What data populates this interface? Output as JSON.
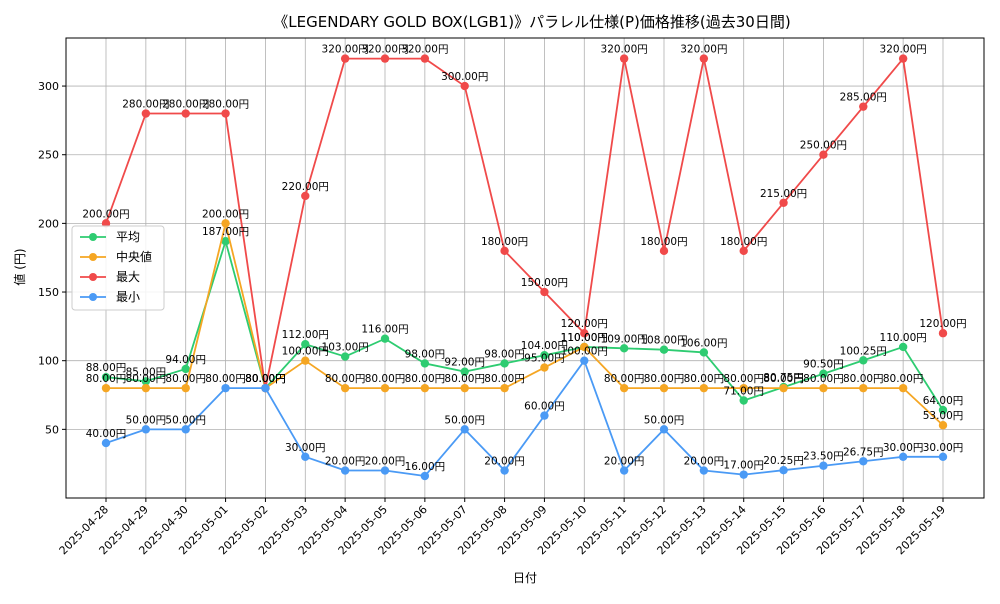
{
  "chart_data": {
    "type": "line",
    "title": "《LEGENDARY GOLD BOX(LGB1)》パラレル仕様(P)価格推移(過去30日間)",
    "xlabel": "日付",
    "ylabel": "値 (円)",
    "ylim": [
      0,
      335
    ],
    "yticks": [
      50,
      100,
      150,
      200,
      250,
      300
    ],
    "grid": true,
    "legend_position": "center-left",
    "categories": [
      "2025-04-28",
      "2025-04-29",
      "2025-04-30",
      "2025-05-01",
      "2025-05-02",
      "2025-05-03",
      "2025-05-04",
      "2025-05-05",
      "2025-05-06",
      "2025-05-07",
      "2025-05-08",
      "2025-05-09",
      "2025-05-10",
      "2025-05-11",
      "2025-05-12",
      "2025-05-13",
      "2025-05-14",
      "2025-05-15",
      "2025-05-16",
      "2025-05-17",
      "2025-05-18",
      "2025-05-19"
    ],
    "series": [
      {
        "name": "平均",
        "color": "#2ecc71",
        "values": [
          88,
          85,
          94,
          187,
          80,
          112,
          103,
          116,
          98,
          92,
          98,
          104,
          110,
          109,
          108,
          106,
          71,
          80.75,
          90.5,
          100.25,
          110,
          64
        ],
        "labels": [
          "88.00円",
          "85.00円",
          "94.00円",
          "187.00円",
          "80.00円",
          "112.00円",
          "103.00円",
          "116.00円",
          "98.00円",
          "92.00円",
          "98.00円",
          "104.00円",
          "110.00円",
          "109.00円",
          "108.00円",
          "106.00円",
          "71.00円",
          "80.75円",
          "90.50円",
          "100.25円",
          "110.00円",
          "64.00円"
        ]
      },
      {
        "name": "中央値",
        "color": "#f5a623",
        "values": [
          80,
          80,
          80,
          200,
          80,
          100,
          80,
          80,
          80,
          80,
          80,
          95,
          110,
          80,
          80,
          80,
          80,
          80,
          80,
          80,
          80,
          53
        ],
        "labels": [
          "80.00円",
          "80.00円",
          "80.00円",
          "200.00円",
          "80.00円",
          "100.00円",
          "80.00円",
          "80.00円",
          "80.00円",
          "80.00円",
          "80.00円",
          "95.00円",
          "110.00円",
          "80.00円",
          "80.00円",
          "80.00円",
          "80.00円",
          "80.00円",
          "80.00円",
          "80.00円",
          "80.00円",
          "53.00円"
        ]
      },
      {
        "name": "最大",
        "color": "#f04a4a",
        "values": [
          200,
          280,
          280,
          280,
          80,
          220,
          320,
          320,
          320,
          300,
          180,
          150,
          120,
          320,
          180,
          320,
          180,
          215,
          250,
          285,
          320,
          120
        ],
        "labels": [
          "200.00円",
          "280.00円",
          "280.00円",
          "280.00円",
          "80.00円",
          "220.00円",
          "320.00円",
          "320.00円",
          "320.00円",
          "300.00円",
          "180.00円",
          "150.00円",
          "120.00円",
          "320.00円",
          "180.00円",
          "320.00円",
          "180.00円",
          "215.00円",
          "250.00円",
          "285.00円",
          "320.00円",
          "120.00円"
        ]
      },
      {
        "name": "最小",
        "color": "#4a9af5",
        "values": [
          40,
          50,
          50,
          80,
          80,
          30,
          20,
          20,
          16,
          50,
          20,
          60,
          100,
          20,
          50,
          20,
          17,
          20.25,
          23.5,
          26.75,
          30,
          30
        ],
        "labels": [
          "40.00円",
          "50.00円",
          "50.00円",
          "80.00円",
          "80.00円",
          "30.00円",
          "20.00円",
          "20.00円",
          "16.00円",
          "50.00円",
          "20.00円",
          "60.00円",
          "100.00円",
          "20.00円",
          "50.00円",
          "20.00円",
          "17.00円",
          "20.25円",
          "23.50円",
          "26.75円",
          "30.00円",
          "30.00円"
        ]
      }
    ]
  }
}
